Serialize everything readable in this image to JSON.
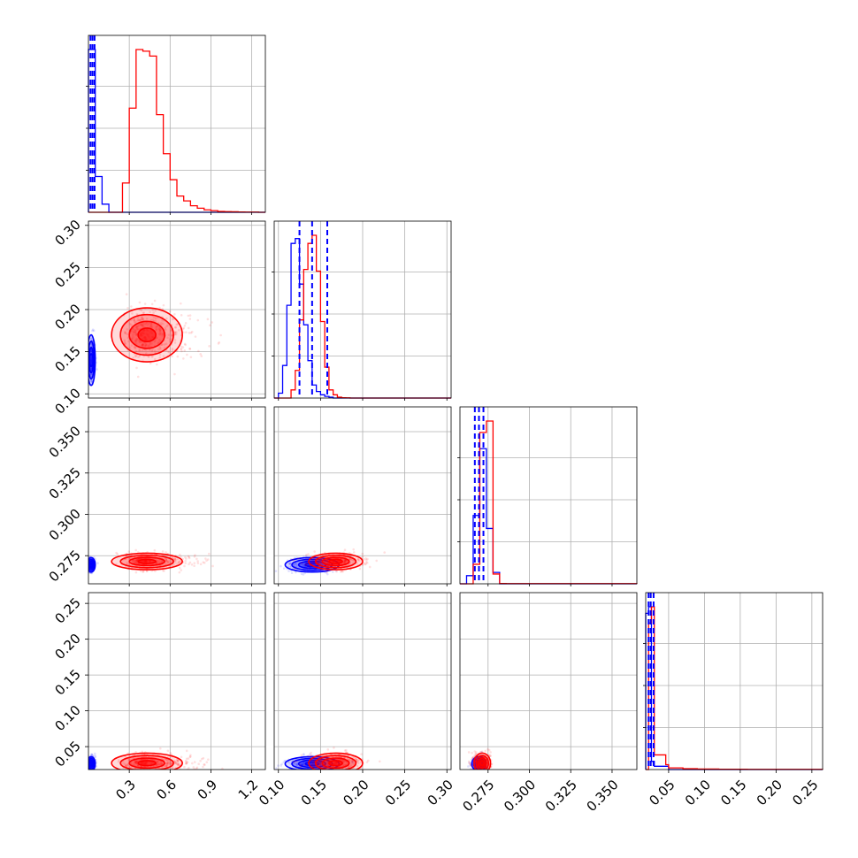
{
  "chart_data": {
    "type": "corner",
    "grid": true,
    "series": [
      {
        "color": "#0000ff",
        "median_lines": "dashed"
      },
      {
        "color": "#ff0000"
      }
    ],
    "parameters": [
      {
        "range": [
          0.0,
          1.3
        ],
        "ticks": [
          0.3,
          0.6,
          0.9,
          1.2
        ],
        "tick_labels": [
          "0.3",
          "0.6",
          "0.9",
          "1.2"
        ]
      },
      {
        "range": [
          0.095,
          0.305
        ],
        "ticks": [
          0.1,
          0.15,
          0.2,
          0.25,
          0.3
        ],
        "tick_labels": [
          "0.10",
          "0.15",
          "0.20",
          "0.25",
          "0.30"
        ]
      },
      {
        "range": [
          0.258,
          0.365
        ],
        "ticks": [
          0.275,
          0.3,
          0.325,
          0.35
        ],
        "tick_labels": [
          "0.275",
          "0.300",
          "0.325",
          "0.350"
        ]
      },
      {
        "range": [
          0.018,
          0.265
        ],
        "ticks": [
          0.05,
          0.1,
          0.15,
          0.2,
          0.25
        ],
        "tick_labels": [
          "0.05",
          "0.10",
          "0.15",
          "0.20",
          "0.25"
        ]
      }
    ],
    "histograms": [
      {
        "bins": [
          0.0,
          0.05,
          0.1,
          0.15,
          0.2,
          0.25,
          0.3,
          0.35,
          0.4,
          0.45,
          0.5,
          0.55,
          0.6,
          0.65,
          0.7,
          0.75,
          0.8,
          0.85,
          0.9,
          0.95,
          1.0,
          1.05,
          1.1,
          1.15,
          1.2,
          1.25,
          1.3
        ],
        "ymax": 1.0,
        "blue": [
          1.0,
          0.22,
          0.05,
          0,
          0,
          0,
          0,
          0,
          0,
          0,
          0,
          0,
          0,
          0,
          0,
          0,
          0,
          0,
          0,
          0,
          0,
          0,
          0,
          0,
          0,
          0
        ],
        "red": [
          0,
          0,
          0,
          0,
          0,
          0.18,
          0.64,
          1.0,
          0.99,
          0.96,
          0.6,
          0.36,
          0.2,
          0.1,
          0.07,
          0.04,
          0.025,
          0.015,
          0.01,
          0.005,
          0.004,
          0.003,
          0.002,
          0.001,
          0.001,
          0
        ],
        "blue_quantiles": [
          0.015,
          0.03,
          0.045
        ]
      },
      {
        "bins": [
          0.095,
          0.1,
          0.105,
          0.11,
          0.115,
          0.12,
          0.125,
          0.13,
          0.135,
          0.14,
          0.145,
          0.15,
          0.155,
          0.16,
          0.165,
          0.17,
          0.175,
          0.18,
          0.185,
          0.19,
          0.195,
          0.2,
          0.205,
          0.21,
          0.215,
          0.22,
          0.225,
          0.23,
          0.235,
          0.24,
          0.245,
          0.25,
          0.255,
          0.26,
          0.265,
          0.27,
          0.275,
          0.28,
          0.285,
          0.29,
          0.295,
          0.3,
          0.305
        ],
        "ymax": 1.0,
        "blue": [
          0,
          0.03,
          0.2,
          0.57,
          0.95,
          0.98,
          0.7,
          0.45,
          0.23,
          0.08,
          0.04,
          0.02,
          0.01,
          0.005,
          0,
          0,
          0,
          0,
          0,
          0,
          0,
          0,
          0,
          0,
          0,
          0,
          0,
          0,
          0,
          0,
          0,
          0,
          0,
          0,
          0,
          0,
          0,
          0,
          0,
          0,
          0,
          0
        ],
        "red": [
          0,
          0,
          0,
          0,
          0.05,
          0.17,
          0.48,
          0.79,
          0.95,
          1.0,
          0.78,
          0.47,
          0.19,
          0.05,
          0.02,
          0.005,
          0.002,
          0.001,
          0,
          0,
          0,
          0,
          0,
          0,
          0,
          0,
          0,
          0,
          0,
          0,
          0,
          0,
          0,
          0,
          0,
          0,
          0,
          0,
          0,
          0,
          0,
          0
        ],
        "blue_quantiles": [
          0.125,
          0.14,
          0.158
        ]
      },
      {
        "bins": [
          0.258,
          0.262,
          0.266,
          0.27,
          0.274,
          0.278,
          0.282,
          0.286,
          0.29,
          0.294,
          0.298,
          0.302,
          0.306,
          0.31,
          0.314,
          0.318,
          0.322,
          0.326,
          0.33,
          0.334,
          0.338,
          0.342,
          0.346,
          0.35,
          0.354,
          0.358,
          0.362,
          0.365
        ],
        "ymax": 1.0,
        "blue": [
          0,
          0.05,
          0.42,
          0.83,
          0.34,
          0.07,
          0,
          0,
          0,
          0,
          0,
          0,
          0,
          0,
          0,
          0,
          0,
          0,
          0,
          0,
          0,
          0,
          0,
          0,
          0,
          0,
          0
        ],
        "red": [
          0,
          0,
          0.12,
          0.93,
          1.0,
          0.06,
          0.002,
          0.001,
          0.001,
          0.001,
          0.001,
          0.001,
          0.001,
          0.001,
          0.001,
          0.001,
          0.001,
          0.001,
          0.001,
          0.001,
          0.001,
          0.001,
          0.001,
          0.001,
          0.001,
          0.001,
          0.001
        ],
        "blue_quantiles": [
          0.267,
          0.2695,
          0.2722
        ]
      },
      {
        "bins": [
          0.018,
          0.022,
          0.026,
          0.03,
          0.034,
          0.038,
          0.042,
          0.046,
          0.05,
          0.06,
          0.07,
          0.08,
          0.09,
          0.1,
          0.12,
          0.14,
          0.16,
          0.18,
          0.2,
          0.22,
          0.24,
          0.265
        ],
        "ymax": 1.0,
        "blue": [
          0.96,
          1.0,
          0.05,
          0.02,
          0.02,
          0.02,
          0.02,
          0.02,
          0.0,
          0,
          0,
          0,
          0,
          0,
          0,
          0,
          0,
          0,
          0,
          0,
          0
        ],
        "red": [
          0,
          0.9,
          1.0,
          0.09,
          0.09,
          0.09,
          0.09,
          0.03,
          0.01,
          0.01,
          0.005,
          0.005,
          0.003,
          0.003,
          0.002,
          0.002,
          0.001,
          0.001,
          0.001,
          0.001,
          0.001
        ],
        "blue_quantiles": [
          0.022,
          0.025,
          0.029
        ]
      }
    ],
    "pairs": [
      {
        "row": 1,
        "col": 0,
        "blue": {
          "mean": [
            0.02,
            0.14
          ],
          "sd": [
            0.015,
            0.015
          ]
        },
        "red": {
          "mean": [
            0.43,
            0.17
          ],
          "sd": [
            0.13,
            0.016
          ]
        }
      },
      {
        "row": 2,
        "col": 0,
        "blue": {
          "mean": [
            0.02,
            0.2695
          ],
          "sd": [
            0.015,
            0.0022
          ]
        },
        "red": {
          "mean": [
            0.43,
            0.2715
          ],
          "sd": [
            0.13,
            0.0025
          ]
        }
      },
      {
        "row": 2,
        "col": 1,
        "blue": {
          "mean": [
            0.14,
            0.2695
          ],
          "sd": [
            0.016,
            0.0022
          ]
        },
        "red": {
          "mean": [
            0.168,
            0.2715
          ],
          "sd": [
            0.016,
            0.0025
          ]
        }
      },
      {
        "row": 3,
        "col": 0,
        "blue": {
          "mean": [
            0.02,
            0.026
          ],
          "sd": [
            0.015,
            0.005
          ]
        },
        "red": {
          "mean": [
            0.43,
            0.027
          ],
          "sd": [
            0.13,
            0.007
          ]
        }
      },
      {
        "row": 3,
        "col": 1,
        "blue": {
          "mean": [
            0.14,
            0.026
          ],
          "sd": [
            0.016,
            0.005
          ]
        },
        "red": {
          "mean": [
            0.168,
            0.027
          ],
          "sd": [
            0.016,
            0.007
          ]
        }
      },
      {
        "row": 3,
        "col": 2,
        "blue": {
          "mean": [
            0.2695,
            0.026
          ],
          "sd": [
            0.0022,
            0.005
          ]
        },
        "red": {
          "mean": [
            0.2715,
            0.027
          ],
          "sd": [
            0.0025,
            0.007
          ]
        }
      }
    ]
  }
}
